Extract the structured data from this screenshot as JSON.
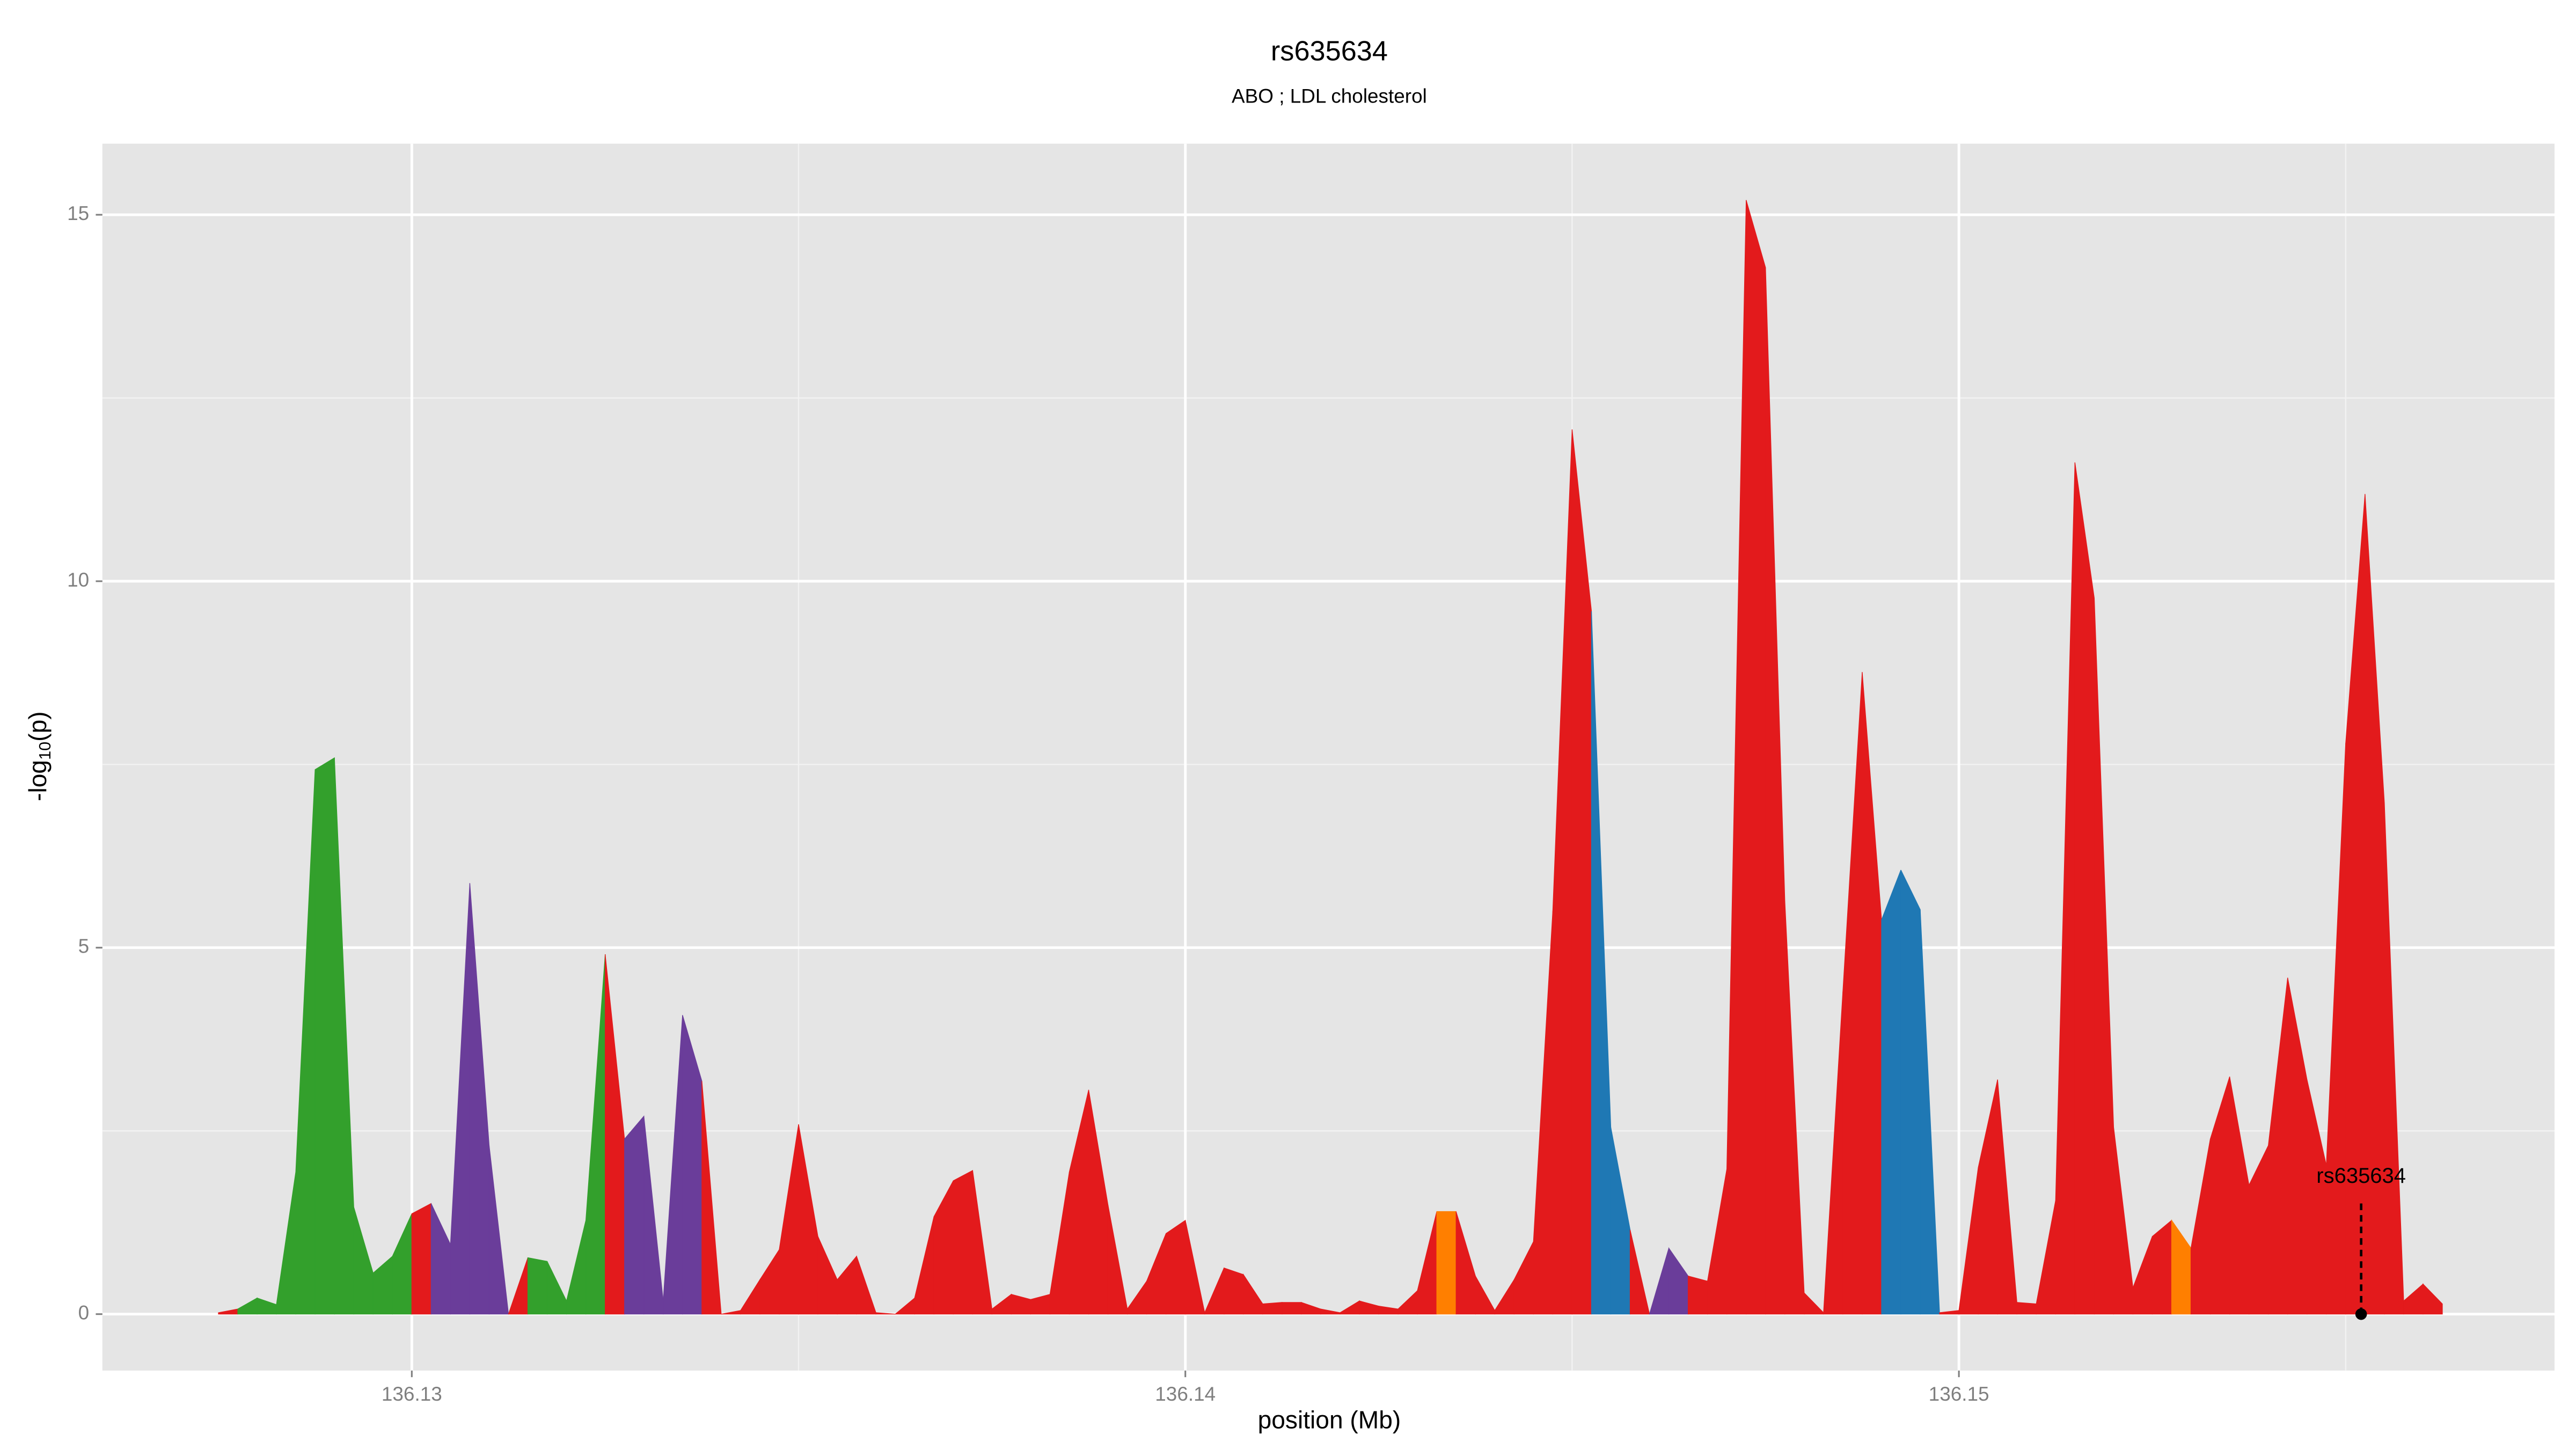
{
  "chart_data": {
    "type": "area",
    "title": "rs635634",
    "subtitle": "ABO ; LDL cholesterol",
    "xlabel": "position (Mb)",
    "ylabel": {
      "prefix": "-log",
      "sub": "10",
      "suffix": "(p)"
    },
    "xlim": [
      136.126,
      136.1577
    ],
    "ylim": [
      -0.77,
      15.97
    ],
    "xticks": [
      136.13,
      136.14,
      136.15
    ],
    "yticks": [
      0,
      5,
      10,
      15
    ],
    "x_minor_grid": [
      136.135,
      136.145,
      136.155
    ],
    "y_minor_grid": [
      2.5,
      7.5,
      12.5
    ],
    "grid": true,
    "background": "#e5e5e5",
    "x": [
      136.1275,
      136.12775,
      136.128,
      136.12825,
      136.1285,
      136.12875,
      136.129,
      136.12925,
      136.1295,
      136.12975,
      136.13,
      136.13025,
      136.1305,
      136.13075,
      136.131,
      136.13125,
      136.1315,
      136.13175,
      136.132,
      136.13225,
      136.1325,
      136.13275,
      136.133,
      136.13325,
      136.1335,
      136.13375,
      136.134,
      136.13425,
      136.1345,
      136.13475,
      136.135,
      136.13525,
      136.1355,
      136.13575,
      136.136,
      136.13625,
      136.1365,
      136.13675,
      136.137,
      136.13725,
      136.1375,
      136.13775,
      136.138,
      136.13825,
      136.1385,
      136.13875,
      136.139,
      136.13925,
      136.1395,
      136.13975,
      136.14,
      136.14025,
      136.1405,
      136.14075,
      136.141,
      136.14125,
      136.1415,
      136.14175,
      136.142,
      136.14225,
      136.1425,
      136.14275,
      136.143,
      136.14325,
      136.1435,
      136.14375,
      136.144,
      136.14425,
      136.1445,
      136.14475,
      136.145,
      136.14525,
      136.1455,
      136.14575,
      136.146,
      136.14625,
      136.1465,
      136.14675,
      136.147,
      136.14725,
      136.1475,
      136.14775,
      136.148,
      136.14825,
      136.1485,
      136.14875,
      136.149,
      136.14925,
      136.1495,
      136.14975,
      136.15,
      136.15025,
      136.1505,
      136.15075,
      136.151,
      136.15125,
      136.1515,
      136.15175,
      136.152,
      136.15225,
      136.1525,
      136.15275,
      136.153,
      136.15325,
      136.1535,
      136.15375,
      136.154,
      136.15425,
      136.1545,
      136.15475,
      136.155,
      136.15525,
      136.1555,
      136.15575,
      136.156,
      136.15625
    ],
    "values": [
      0.02,
      0.07,
      0.22,
      0.13,
      1.94,
      7.43,
      7.59,
      1.46,
      0.56,
      0.79,
      1.37,
      1.51,
      0.95,
      5.88,
      2.3,
      0.0,
      0.77,
      0.72,
      0.18,
      1.28,
      4.91,
      2.39,
      2.7,
      0.18,
      4.08,
      3.18,
      0.0,
      0.05,
      0.47,
      0.88,
      2.59,
      1.06,
      0.47,
      0.79,
      0.02,
      0.0,
      0.22,
      1.33,
      1.82,
      1.96,
      0.07,
      0.27,
      0.2,
      0.27,
      1.94,
      3.06,
      1.49,
      0.07,
      0.45,
      1.1,
      1.28,
      0.02,
      0.63,
      0.54,
      0.14,
      0.16,
      0.16,
      0.07,
      0.02,
      0.18,
      0.11,
      0.07,
      0.32,
      1.4,
      1.4,
      0.52,
      0.05,
      0.47,
      0.99,
      5.5,
      12.07,
      9.59,
      2.55,
      1.15,
      0.0,
      0.9,
      0.52,
      0.45,
      1.98,
      15.2,
      14.28,
      5.63,
      0.29,
      0.02,
      4.4,
      8.76,
      5.38,
      6.06,
      5.52,
      0.02,
      0.05,
      2.0,
      3.2,
      0.16,
      0.14,
      1.55,
      11.62,
      9.77,
      2.55,
      0.36,
      1.06,
      1.28,
      0.9,
      2.39,
      3.24,
      1.76,
      2.3,
      4.59,
      3.2,
      2.03,
      7.79,
      11.19,
      6.98,
      0.18,
      0.41,
      0.14
    ],
    "colors": [
      "#e31a1c",
      "#33a02c",
      "#33a02c",
      "#33a02c",
      "#33a02c",
      "#33a02c",
      "#33a02c",
      "#33a02c",
      "#33a02c",
      "#33a02c",
      "#e31a1c",
      "#6a3d9a",
      "#6a3d9a",
      "#6a3d9a",
      "#6a3d9a",
      "#e31a1c",
      "#33a02c",
      "#33a02c",
      "#33a02c",
      "#33a02c",
      "#e31a1c",
      "#6a3d9a",
      "#6a3d9a",
      "#6a3d9a",
      "#6a3d9a",
      "#e31a1c",
      "#e31a1c",
      "#e31a1c",
      "#e31a1c",
      "#e31a1c",
      "#e31a1c",
      "#e31a1c",
      "#e31a1c",
      "#e31a1c",
      "#e31a1c",
      "#e31a1c",
      "#e31a1c",
      "#e31a1c",
      "#e31a1c",
      "#e31a1c",
      "#e31a1c",
      "#e31a1c",
      "#e31a1c",
      "#e31a1c",
      "#e31a1c",
      "#e31a1c",
      "#e31a1c",
      "#e31a1c",
      "#e31a1c",
      "#e31a1c",
      "#e31a1c",
      "#e31a1c",
      "#e31a1c",
      "#e31a1c",
      "#e31a1c",
      "#e31a1c",
      "#e31a1c",
      "#e31a1c",
      "#e31a1c",
      "#e31a1c",
      "#e31a1c",
      "#e31a1c",
      "#e31a1c",
      "#ff7f00",
      "#e31a1c",
      "#e31a1c",
      "#e31a1c",
      "#e31a1c",
      "#e31a1c",
      "#e31a1c",
      "#e31a1c",
      "#1f78b4",
      "#1f78b4",
      "#e31a1c",
      "#6a3d9a",
      "#6a3d9a",
      "#e31a1c",
      "#e31a1c",
      "#e31a1c",
      "#e31a1c",
      "#e31a1c",
      "#e31a1c",
      "#e31a1c",
      "#e31a1c",
      "#e31a1c",
      "#e31a1c",
      "#1f78b4",
      "#1f78b4",
      "#1f78b4",
      "#e31a1c",
      "#e31a1c",
      "#e31a1c",
      "#e31a1c",
      "#e31a1c",
      "#e31a1c",
      "#e31a1c",
      "#e31a1c",
      "#e31a1c",
      "#e31a1c",
      "#e31a1c",
      "#e31a1c",
      "#ff7f00",
      "#e31a1c",
      "#e31a1c",
      "#e31a1c",
      "#e31a1c",
      "#e31a1c",
      "#e31a1c",
      "#e31a1c",
      "#e31a1c",
      "#e31a1c",
      "#e31a1c",
      "#e31a1c",
      "#e31a1c",
      "#e31a1c",
      "#e31a1c"
    ],
    "annotation": {
      "text": "rs635634",
      "x": 136.1552,
      "y": 0
    }
  }
}
